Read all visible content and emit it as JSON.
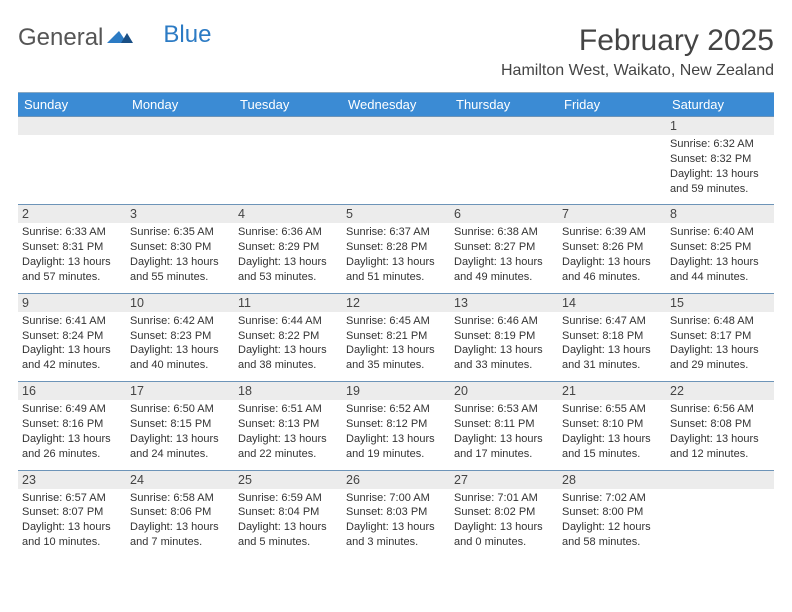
{
  "logo": {
    "part1": "General",
    "part2": "Blue"
  },
  "title": "February 2025",
  "location": "Hamilton West, Waikato, New Zealand",
  "colors": {
    "header_bg": "#3b8bd4",
    "header_fg": "#ffffff",
    "daynum_bg": "#ececec",
    "week_border": "#6d94b8",
    "text": "#333333"
  },
  "layout": {
    "columns": 7,
    "weeks": 5,
    "cell_font_size_pt": 8.5,
    "daynum_font_size_pt": 9.5,
    "header_font_size_pt": 10
  },
  "day_names": [
    "Sunday",
    "Monday",
    "Tuesday",
    "Wednesday",
    "Thursday",
    "Friday",
    "Saturday"
  ],
  "weeks": [
    {
      "nums": [
        "",
        "",
        "",
        "",
        "",
        "",
        "1"
      ],
      "cells": [
        null,
        null,
        null,
        null,
        null,
        null,
        {
          "sunrise": "6:32 AM",
          "sunset": "8:32 PM",
          "daylight": "13 hours and 59 minutes."
        }
      ]
    },
    {
      "nums": [
        "2",
        "3",
        "4",
        "5",
        "6",
        "7",
        "8"
      ],
      "cells": [
        {
          "sunrise": "6:33 AM",
          "sunset": "8:31 PM",
          "daylight": "13 hours and 57 minutes."
        },
        {
          "sunrise": "6:35 AM",
          "sunset": "8:30 PM",
          "daylight": "13 hours and 55 minutes."
        },
        {
          "sunrise": "6:36 AM",
          "sunset": "8:29 PM",
          "daylight": "13 hours and 53 minutes."
        },
        {
          "sunrise": "6:37 AM",
          "sunset": "8:28 PM",
          "daylight": "13 hours and 51 minutes."
        },
        {
          "sunrise": "6:38 AM",
          "sunset": "8:27 PM",
          "daylight": "13 hours and 49 minutes."
        },
        {
          "sunrise": "6:39 AM",
          "sunset": "8:26 PM",
          "daylight": "13 hours and 46 minutes."
        },
        {
          "sunrise": "6:40 AM",
          "sunset": "8:25 PM",
          "daylight": "13 hours and 44 minutes."
        }
      ]
    },
    {
      "nums": [
        "9",
        "10",
        "11",
        "12",
        "13",
        "14",
        "15"
      ],
      "cells": [
        {
          "sunrise": "6:41 AM",
          "sunset": "8:24 PM",
          "daylight": "13 hours and 42 minutes."
        },
        {
          "sunrise": "6:42 AM",
          "sunset": "8:23 PM",
          "daylight": "13 hours and 40 minutes."
        },
        {
          "sunrise": "6:44 AM",
          "sunset": "8:22 PM",
          "daylight": "13 hours and 38 minutes."
        },
        {
          "sunrise": "6:45 AM",
          "sunset": "8:21 PM",
          "daylight": "13 hours and 35 minutes."
        },
        {
          "sunrise": "6:46 AM",
          "sunset": "8:19 PM",
          "daylight": "13 hours and 33 minutes."
        },
        {
          "sunrise": "6:47 AM",
          "sunset": "8:18 PM",
          "daylight": "13 hours and 31 minutes."
        },
        {
          "sunrise": "6:48 AM",
          "sunset": "8:17 PM",
          "daylight": "13 hours and 29 minutes."
        }
      ]
    },
    {
      "nums": [
        "16",
        "17",
        "18",
        "19",
        "20",
        "21",
        "22"
      ],
      "cells": [
        {
          "sunrise": "6:49 AM",
          "sunset": "8:16 PM",
          "daylight": "13 hours and 26 minutes."
        },
        {
          "sunrise": "6:50 AM",
          "sunset": "8:15 PM",
          "daylight": "13 hours and 24 minutes."
        },
        {
          "sunrise": "6:51 AM",
          "sunset": "8:13 PM",
          "daylight": "13 hours and 22 minutes."
        },
        {
          "sunrise": "6:52 AM",
          "sunset": "8:12 PM",
          "daylight": "13 hours and 19 minutes."
        },
        {
          "sunrise": "6:53 AM",
          "sunset": "8:11 PM",
          "daylight": "13 hours and 17 minutes."
        },
        {
          "sunrise": "6:55 AM",
          "sunset": "8:10 PM",
          "daylight": "13 hours and 15 minutes."
        },
        {
          "sunrise": "6:56 AM",
          "sunset": "8:08 PM",
          "daylight": "13 hours and 12 minutes."
        }
      ]
    },
    {
      "nums": [
        "23",
        "24",
        "25",
        "26",
        "27",
        "28",
        ""
      ],
      "cells": [
        {
          "sunrise": "6:57 AM",
          "sunset": "8:07 PM",
          "daylight": "13 hours and 10 minutes."
        },
        {
          "sunrise": "6:58 AM",
          "sunset": "8:06 PM",
          "daylight": "13 hours and 7 minutes."
        },
        {
          "sunrise": "6:59 AM",
          "sunset": "8:04 PM",
          "daylight": "13 hours and 5 minutes."
        },
        {
          "sunrise": "7:00 AM",
          "sunset": "8:03 PM",
          "daylight": "13 hours and 3 minutes."
        },
        {
          "sunrise": "7:01 AM",
          "sunset": "8:02 PM",
          "daylight": "13 hours and 0 minutes."
        },
        {
          "sunrise": "7:02 AM",
          "sunset": "8:00 PM",
          "daylight": "12 hours and 58 minutes."
        },
        null
      ]
    }
  ],
  "labels": {
    "sunrise": "Sunrise: ",
    "sunset": "Sunset: ",
    "daylight": "Daylight: "
  }
}
